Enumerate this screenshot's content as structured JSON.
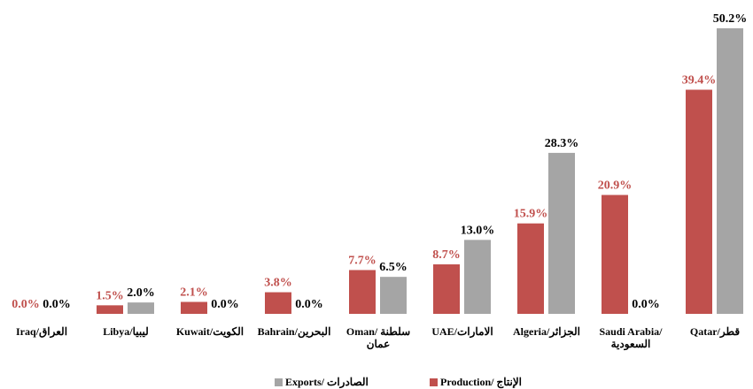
{
  "chart_data": {
    "type": "bar",
    "categories": [
      "Iraq/العراق",
      "Libya/ليبيا",
      "Kuwait/الكويت",
      "Bahrain/البحرين",
      "Oman/ سلطنة عمان",
      "UAE/الامارات",
      "Algeria/الجزائر",
      "Saudi Arabia/السعودية",
      "Qatar/قطر"
    ],
    "series": [
      {
        "name": "Production/ الإنتاج",
        "color": "#c0504d",
        "values": [
          0.0,
          1.5,
          2.1,
          3.8,
          7.7,
          8.7,
          15.9,
          20.9,
          39.4
        ],
        "value_labels": [
          "0.0%",
          "1.5%",
          "2.1%",
          "3.8%",
          "7.7%",
          "8.7%",
          "15.9%",
          "20.9%",
          "39.4%"
        ]
      },
      {
        "name": "Exports/ الصادرات",
        "color": "#a5a5a5",
        "values": [
          0.0,
          2.0,
          0.0,
          0.0,
          6.5,
          13.0,
          28.3,
          0.0,
          50.2
        ],
        "value_labels": [
          "0.0%",
          "2.0%",
          "0.0%",
          "0.0%",
          "6.5%",
          "13.0%",
          "28.3%",
          "0.0%",
          "50.2%"
        ]
      }
    ]
  }
}
